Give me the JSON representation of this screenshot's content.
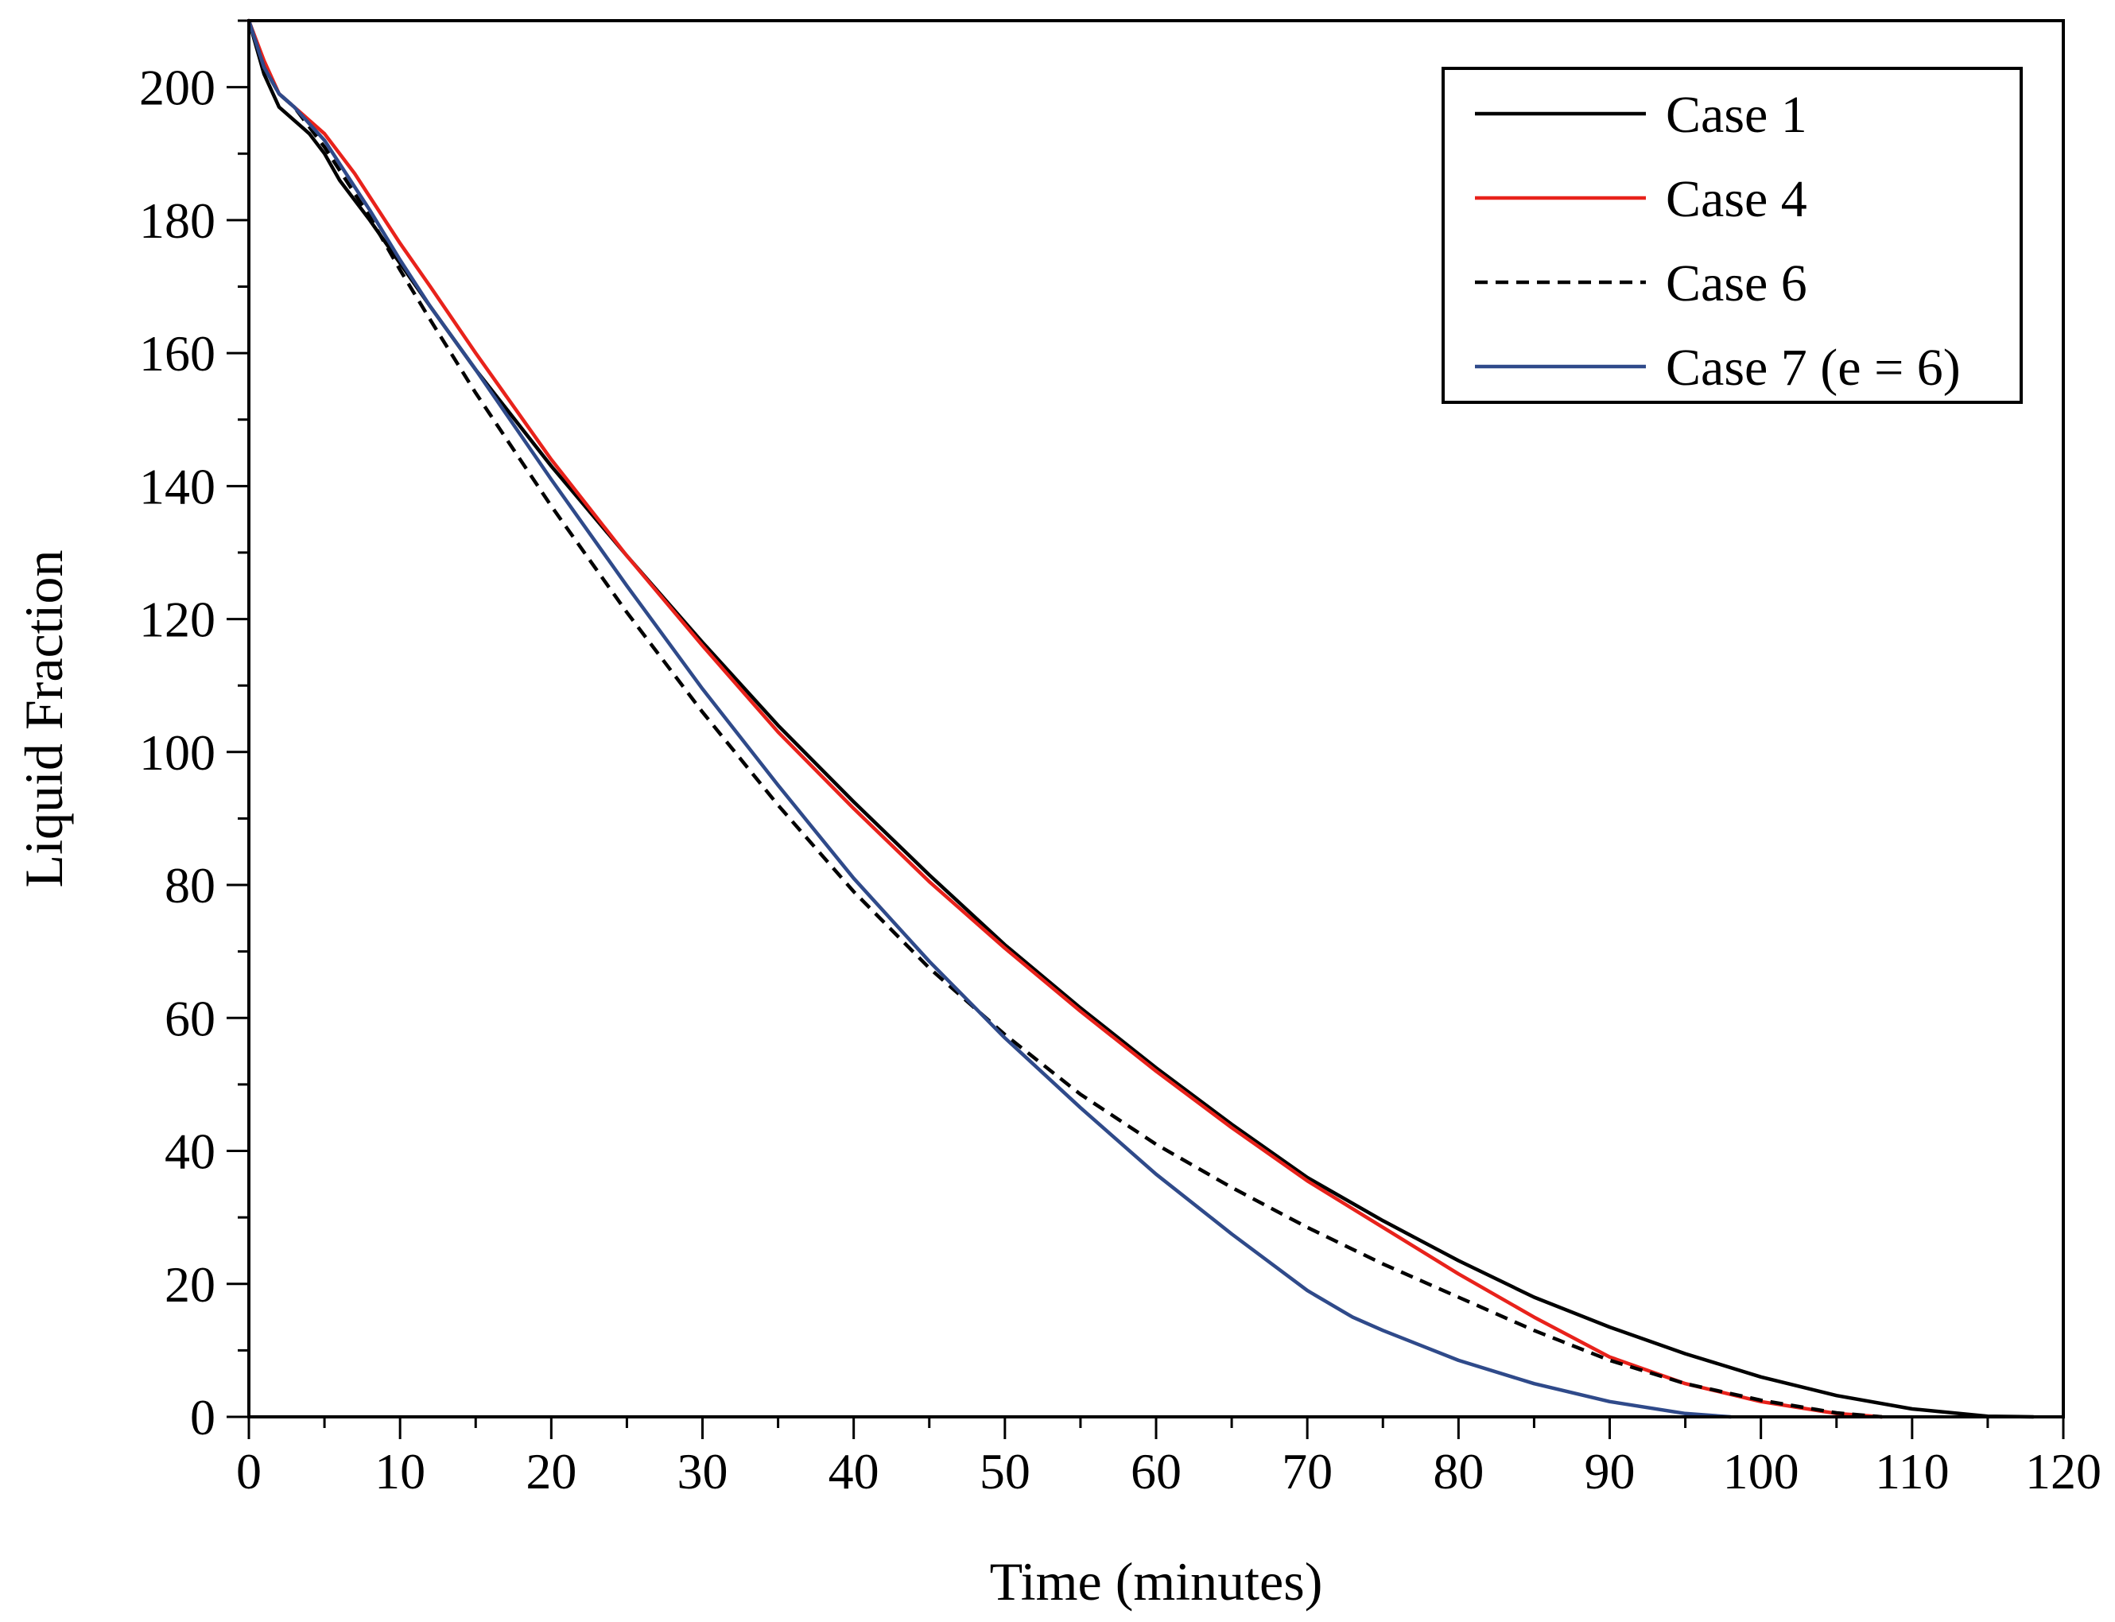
{
  "chart_data": {
    "type": "line",
    "title": "",
    "xlabel": "Time (minutes)",
    "ylabel": "Liquid Fraction",
    "xlim": [
      0,
      120
    ],
    "ylim": [
      0,
      210
    ],
    "xticks": [
      0,
      10,
      20,
      30,
      40,
      50,
      60,
      70,
      80,
      90,
      100,
      110,
      120
    ],
    "yticks": [
      0,
      20,
      40,
      60,
      80,
      100,
      120,
      140,
      160,
      180,
      200
    ],
    "x_minor_step": 5,
    "y_minor_step": 10,
    "grid": false,
    "legend_position": "top-right",
    "series": [
      {
        "name": "Case 1",
        "color": "#000000",
        "dash": "solid",
        "x": [
          0,
          1,
          2,
          3,
          4,
          5,
          6,
          8,
          10,
          12,
          15,
          20,
          25,
          30,
          35,
          40,
          45,
          50,
          55,
          60,
          65,
          70,
          75,
          80,
          85,
          90,
          95,
          100,
          105,
          110,
          115,
          118
        ],
        "y": [
          210,
          202,
          197,
          195,
          193,
          190,
          186,
          180,
          173.5,
          167,
          157.5,
          143,
          129.5,
          116.5,
          104,
          92.5,
          81.5,
          71,
          61.5,
          52.5,
          44,
          36,
          29.5,
          23.5,
          18,
          13.5,
          9.5,
          6,
          3.2,
          1.2,
          0.1,
          0
        ]
      },
      {
        "name": "Case 4",
        "color": "#e8221b",
        "dash": "solid",
        "x": [
          0,
          1,
          2,
          3,
          4,
          5,
          6,
          7,
          8,
          10,
          12,
          15,
          20,
          25,
          30,
          35,
          40,
          45,
          50,
          55,
          60,
          65,
          70,
          75,
          80,
          85,
          90,
          95,
          100,
          105,
          108
        ],
        "y": [
          210,
          204,
          199,
          197,
          195,
          193,
          190,
          187,
          183.5,
          176.5,
          170,
          160,
          144,
          129.5,
          116,
          103,
          91.5,
          80.5,
          70.5,
          61,
          52,
          43.5,
          35.5,
          28.5,
          21.5,
          15,
          9,
          5,
          2.3,
          0.5,
          0
        ]
      },
      {
        "name": "Case 6",
        "color": "#000000",
        "dash": "dashed",
        "x": [
          0,
          1,
          2,
          3,
          4,
          5,
          6,
          8,
          10,
          12,
          15,
          20,
          25,
          30,
          35,
          40,
          45,
          50,
          55,
          60,
          65,
          70,
          75,
          80,
          85,
          90,
          95,
          100,
          105,
          108
        ],
        "y": [
          210,
          203,
          199,
          197,
          194,
          191,
          187.5,
          180.5,
          172.5,
          165,
          154,
          137,
          121,
          106,
          92,
          79,
          67.5,
          57.5,
          48.5,
          41,
          34.5,
          28.5,
          23,
          18,
          13,
          8.5,
          5,
          2.5,
          0.6,
          0
        ]
      },
      {
        "name": "Case 7 (e = 6)",
        "color": "#2f4a8a",
        "dash": "solid",
        "x": [
          0,
          1,
          2,
          3,
          4,
          5,
          6,
          8,
          10,
          12,
          15,
          20,
          25,
          30,
          35,
          40,
          45,
          50,
          55,
          60,
          65,
          70,
          73,
          75,
          80,
          85,
          90,
          95,
          98
        ],
        "y": [
          210,
          203,
          199,
          197,
          194.5,
          192,
          188.5,
          181.5,
          174,
          167,
          157.5,
          141,
          125,
          109.5,
          95,
          81,
          68.5,
          57,
          46.5,
          36.5,
          27.5,
          19,
          15,
          13,
          8.5,
          5,
          2.3,
          0.5,
          0
        ]
      }
    ]
  }
}
